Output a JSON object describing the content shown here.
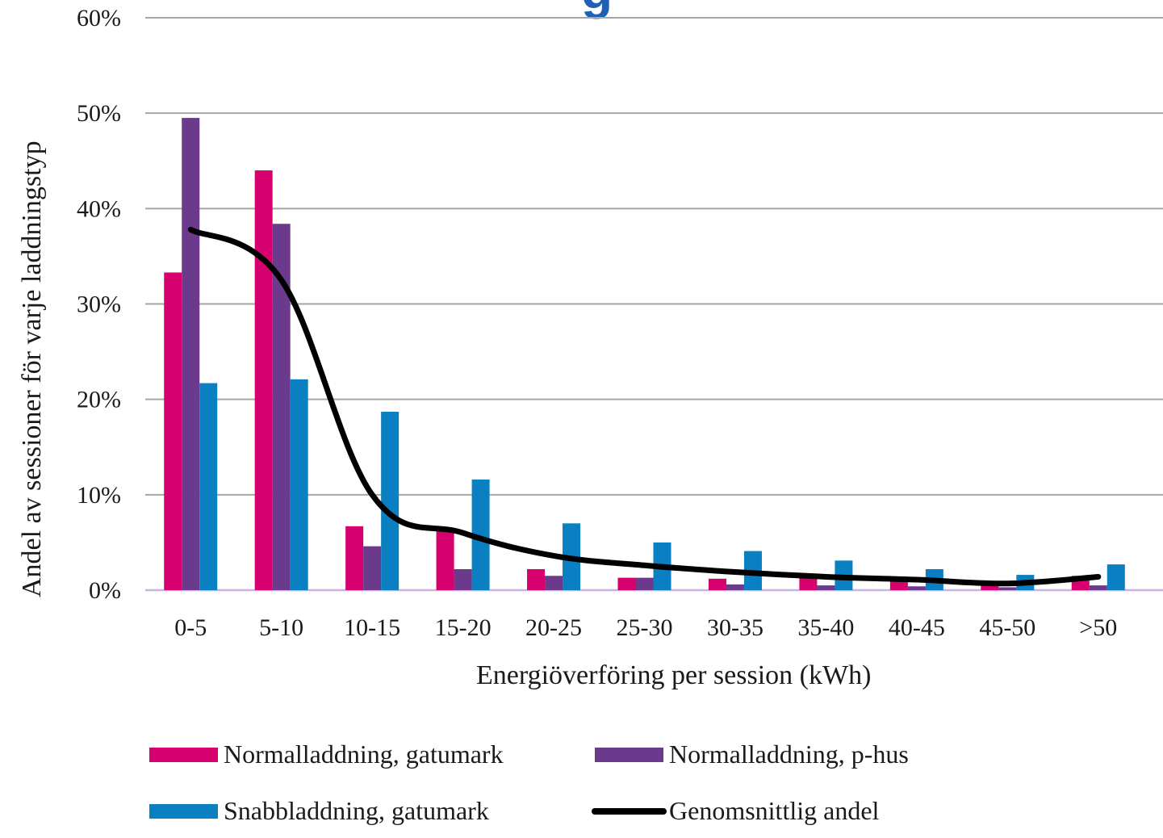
{
  "title_fragment": "g",
  "chart_data": {
    "type": "bar",
    "categories": [
      "0-5",
      "5-10",
      "10-15",
      "15-20",
      "20-25",
      "25-30",
      "30-35",
      "35-40",
      "40-45",
      "45-50",
      ">50"
    ],
    "series": [
      {
        "name": "Normalladdning, gatumark",
        "kind": "bar",
        "color": "#d6006f",
        "values": [
          33.3,
          44.0,
          6.7,
          6.5,
          2.2,
          1.3,
          1.2,
          1.4,
          1.0,
          0.6,
          1.5
        ]
      },
      {
        "name": "Normalladdning, p-hus",
        "kind": "bar",
        "color": "#6b3a8c",
        "values": [
          49.5,
          38.4,
          4.6,
          2.2,
          1.5,
          1.3,
          0.6,
          0.5,
          0.4,
          0.3,
          0.5
        ]
      },
      {
        "name": "Snabbladdning, gatumark",
        "kind": "bar",
        "color": "#0a7fc2",
        "values": [
          21.7,
          22.1,
          18.7,
          11.6,
          7.0,
          5.0,
          4.1,
          3.1,
          2.2,
          1.6,
          2.7
        ]
      },
      {
        "name": "Genomsnittlig andel",
        "kind": "line",
        "color": "#000000",
        "values": [
          37.8,
          32.5,
          10.0,
          6.0,
          3.6,
          2.6,
          1.9,
          1.4,
          1.1,
          0.7,
          1.4
        ]
      }
    ],
    "xlabel": "Energiöverföring per session (kWh)",
    "ylabel": "Andel av sessioner för varje laddningstyp",
    "ylim": [
      0,
      60
    ],
    "yticks": [
      0,
      10,
      20,
      30,
      40,
      50,
      60
    ],
    "ytick_labels": [
      "0%",
      "10%",
      "20%",
      "30%",
      "40%",
      "50%",
      "60%"
    ],
    "grid": true,
    "legend_position": "bottom"
  }
}
